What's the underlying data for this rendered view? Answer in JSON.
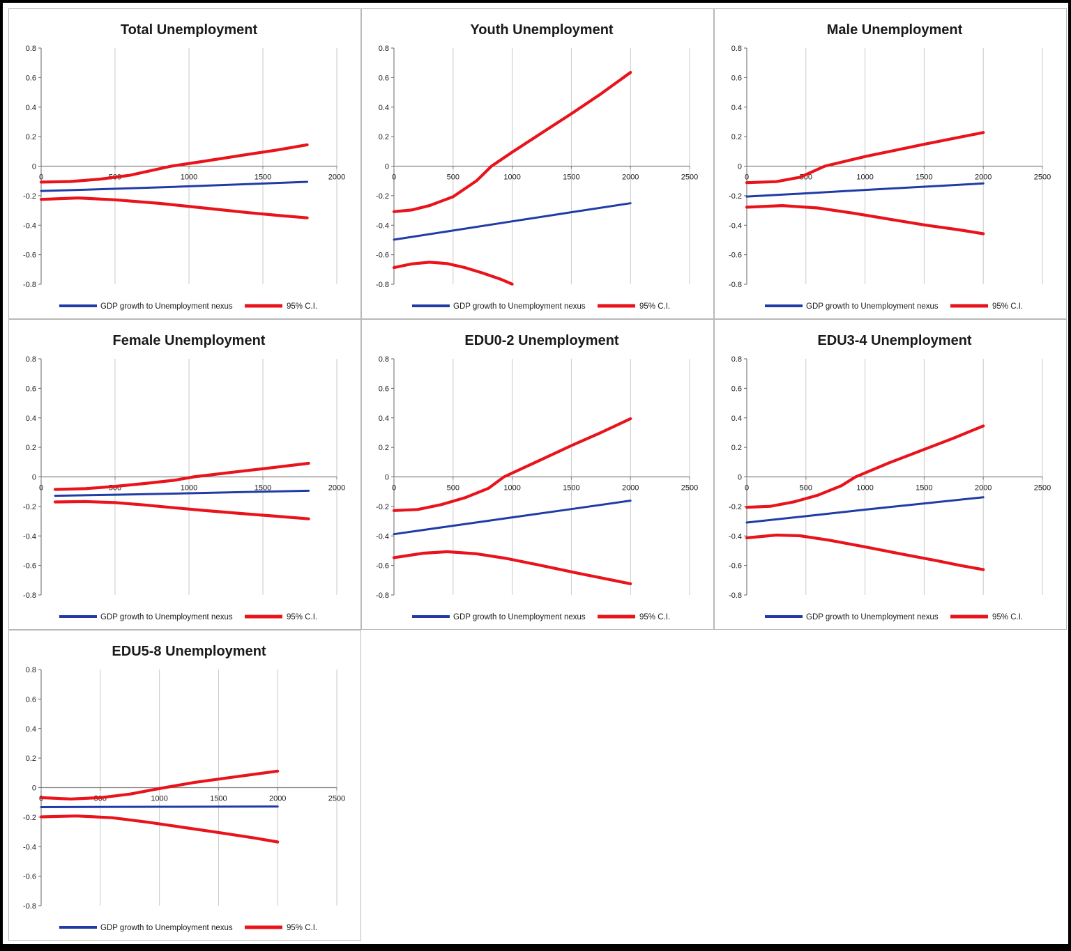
{
  "figure": {
    "background": "#ffffff",
    "frame_color": "#000000",
    "panel_border_color": "#b9b9b9"
  },
  "colors": {
    "nexus_blue": "#1f3ca6",
    "ci_red": "#e8131b",
    "gridline": "#c9c9c9",
    "axis": "#808080",
    "text": "#1a1a1a"
  },
  "legend": {
    "nexus": "GDP growth to Unemployment nexus",
    "ci": "95% C.I."
  },
  "chart_data": [
    {
      "type": "line",
      "title": "Total Unemployment",
      "xlim": [
        0,
        2000
      ],
      "xticks": [
        0,
        500,
        1000,
        1500,
        2000
      ],
      "ylim": [
        -0.8,
        0.8
      ],
      "yticks": [
        "0.8",
        "0.6",
        "0.4",
        "0.2",
        "0",
        "-0.2",
        "-0.4",
        "-0.6",
        "-0.8"
      ],
      "grid": "vertical-only",
      "legend_position": "bottom",
      "series": [
        {
          "key": "nexus",
          "name": "GDP growth to Unemployment nexus",
          "color_ref": "nexus_blue",
          "points": [
            [
              0,
              -0.168
            ],
            [
              450,
              -0.155
            ],
            [
              900,
              -0.14
            ],
            [
              1350,
              -0.123
            ],
            [
              1800,
              -0.106
            ]
          ]
        },
        {
          "key": "ci_upper",
          "name": "95% C.I.",
          "color_ref": "ci_red",
          "points": [
            [
              0,
              -0.108
            ],
            [
              200,
              -0.104
            ],
            [
              400,
              -0.088
            ],
            [
              600,
              -0.062
            ],
            [
              880,
              0
            ],
            [
              1100,
              0.033
            ],
            [
              1400,
              0.08
            ],
            [
              1600,
              0.11
            ],
            [
              1800,
              0.145
            ]
          ]
        },
        {
          "key": "ci_lower",
          "name": "95% C.I.",
          "color_ref": "ci_red",
          "points": [
            [
              0,
              -0.225
            ],
            [
              250,
              -0.215
            ],
            [
              500,
              -0.228
            ],
            [
              800,
              -0.252
            ],
            [
              1100,
              -0.283
            ],
            [
              1400,
              -0.315
            ],
            [
              1600,
              -0.333
            ],
            [
              1800,
              -0.35
            ]
          ]
        }
      ]
    },
    {
      "type": "line",
      "title": "Youth Unemployment",
      "xlim": [
        0,
        2500
      ],
      "xticks": [
        0,
        500,
        1000,
        1500,
        2000,
        2500
      ],
      "ylim": [
        -0.8,
        0.8
      ],
      "yticks": [
        "0.8",
        "0.6",
        "0.4",
        "0.2",
        "0",
        "-0.2",
        "-0.4",
        "-0.6",
        "-0.8"
      ],
      "grid": "vertical-only",
      "legend_position": "bottom",
      "series": [
        {
          "key": "nexus",
          "name": "GDP growth to Unemployment nexus",
          "color_ref": "nexus_blue",
          "points": [
            [
              0,
              -0.498
            ],
            [
              500,
              -0.436
            ],
            [
              1000,
              -0.374
            ],
            [
              1500,
              -0.312
            ],
            [
              2000,
              -0.251
            ]
          ]
        },
        {
          "key": "ci_upper",
          "name": "95% C.I.",
          "color_ref": "ci_red",
          "points": [
            [
              0,
              -0.308
            ],
            [
              150,
              -0.297
            ],
            [
              300,
              -0.267
            ],
            [
              500,
              -0.207
            ],
            [
              700,
              -0.098
            ],
            [
              825,
              0
            ],
            [
              1000,
              0.095
            ],
            [
              1250,
              0.225
            ],
            [
              1500,
              0.355
            ],
            [
              1750,
              0.49
            ],
            [
              2000,
              0.635
            ]
          ]
        },
        {
          "key": "ci_lower",
          "name": "95% C.I.",
          "color_ref": "ci_red",
          "points": [
            [
              0,
              -0.687
            ],
            [
              150,
              -0.662
            ],
            [
              300,
              -0.651
            ],
            [
              450,
              -0.66
            ],
            [
              600,
              -0.687
            ],
            [
              750,
              -0.724
            ],
            [
              900,
              -0.765
            ],
            [
              1000,
              -0.799
            ]
          ]
        }
      ]
    },
    {
      "type": "line",
      "title": "Male Unemployment",
      "xlim": [
        0,
        2500
      ],
      "xticks": [
        0,
        500,
        1000,
        1500,
        2000,
        2500
      ],
      "ylim": [
        -0.8,
        0.8
      ],
      "yticks": [
        "0.8",
        "0.6",
        "0.4",
        "0.2",
        "0",
        "-0.2",
        "-0.4",
        "-0.6",
        "-0.8"
      ],
      "grid": "vertical-only",
      "legend_position": "bottom",
      "series": [
        {
          "key": "nexus",
          "name": "GDP growth to Unemployment nexus",
          "color_ref": "nexus_blue",
          "points": [
            [
              0,
              -0.206
            ],
            [
              500,
              -0.184
            ],
            [
              1000,
              -0.161
            ],
            [
              1500,
              -0.139
            ],
            [
              2000,
              -0.117
            ]
          ]
        },
        {
          "key": "ci_upper",
          "name": "95% C.I.",
          "color_ref": "ci_red",
          "points": [
            [
              0,
              -0.112
            ],
            [
              250,
              -0.105
            ],
            [
              450,
              -0.075
            ],
            [
              660,
              0
            ],
            [
              1000,
              0.065
            ],
            [
              1500,
              0.148
            ],
            [
              2000,
              0.228
            ]
          ]
        },
        {
          "key": "ci_lower",
          "name": "95% C.I.",
          "color_ref": "ci_red",
          "points": [
            [
              0,
              -0.278
            ],
            [
              300,
              -0.267
            ],
            [
              600,
              -0.283
            ],
            [
              900,
              -0.318
            ],
            [
              1200,
              -0.358
            ],
            [
              1500,
              -0.398
            ],
            [
              1800,
              -0.432
            ],
            [
              2000,
              -0.458
            ]
          ]
        }
      ]
    },
    {
      "type": "line",
      "title": "Female Unemployment",
      "xlim": [
        0,
        2000
      ],
      "xticks": [
        0,
        500,
        1000,
        1500,
        2000
      ],
      "ylim": [
        -0.8,
        0.8
      ],
      "yticks": [
        "0.8",
        "0.6",
        "0.4",
        "0.2",
        "0",
        "-0.2",
        "-0.4",
        "-0.6",
        "-0.8"
      ],
      "grid": "vertical-only",
      "legend_position": "bottom",
      "series": [
        {
          "key": "nexus",
          "name": "GDP growth to Unemployment nexus",
          "color_ref": "nexus_blue",
          "points": [
            [
              95,
              -0.128
            ],
            [
              500,
              -0.121
            ],
            [
              1000,
              -0.111
            ],
            [
              1400,
              -0.102
            ],
            [
              1810,
              -0.094
            ]
          ]
        },
        {
          "key": "ci_upper",
          "name": "95% C.I.",
          "color_ref": "ci_red",
          "points": [
            [
              95,
              -0.085
            ],
            [
              300,
              -0.08
            ],
            [
              500,
              -0.064
            ],
            [
              700,
              -0.045
            ],
            [
              900,
              -0.023
            ],
            [
              1030,
              0
            ],
            [
              1300,
              0.032
            ],
            [
              1550,
              0.061
            ],
            [
              1810,
              0.092
            ]
          ]
        },
        {
          "key": "ci_lower",
          "name": "95% C.I.",
          "color_ref": "ci_red",
          "points": [
            [
              95,
              -0.17
            ],
            [
              300,
              -0.167
            ],
            [
              500,
              -0.174
            ],
            [
              700,
              -0.19
            ],
            [
              900,
              -0.209
            ],
            [
              1100,
              -0.227
            ],
            [
              1350,
              -0.248
            ],
            [
              1600,
              -0.267
            ],
            [
              1810,
              -0.284
            ]
          ]
        }
      ]
    },
    {
      "type": "line",
      "title": "EDU0-2 Unemployment",
      "xlim": [
        0,
        2500
      ],
      "xticks": [
        0,
        500,
        1000,
        1500,
        2000,
        2500
      ],
      "ylim": [
        -0.8,
        0.8
      ],
      "yticks": [
        "0.8",
        "0.6",
        "0.4",
        "0.2",
        "0",
        "-0.2",
        "-0.4",
        "-0.6",
        "-0.8"
      ],
      "grid": "vertical-only",
      "legend_position": "bottom",
      "series": [
        {
          "key": "nexus",
          "name": "GDP growth to Unemployment nexus",
          "color_ref": "nexus_blue",
          "points": [
            [
              0,
              -0.388
            ],
            [
              500,
              -0.331
            ],
            [
              1000,
              -0.274
            ],
            [
              1500,
              -0.218
            ],
            [
              2000,
              -0.161
            ]
          ]
        },
        {
          "key": "ci_upper",
          "name": "95% C.I.",
          "color_ref": "ci_red",
          "points": [
            [
              0,
              -0.228
            ],
            [
              200,
              -0.221
            ],
            [
              400,
              -0.188
            ],
            [
              600,
              -0.141
            ],
            [
              800,
              -0.077
            ],
            [
              930,
              0
            ],
            [
              1200,
              0.1
            ],
            [
              1500,
              0.212
            ],
            [
              1750,
              0.3
            ],
            [
              2000,
              0.394
            ]
          ]
        },
        {
          "key": "ci_lower",
          "name": "95% C.I.",
          "color_ref": "ci_red",
          "points": [
            [
              0,
              -0.547
            ],
            [
              250,
              -0.517
            ],
            [
              450,
              -0.507
            ],
            [
              700,
              -0.521
            ],
            [
              950,
              -0.552
            ],
            [
              1250,
              -0.601
            ],
            [
              1550,
              -0.652
            ],
            [
              1800,
              -0.692
            ],
            [
              2000,
              -0.724
            ]
          ]
        }
      ]
    },
    {
      "type": "line",
      "title": "EDU3-4 Unemployment",
      "xlim": [
        0,
        2500
      ],
      "xticks": [
        0,
        500,
        1000,
        1500,
        2000,
        2500
      ],
      "ylim": [
        -0.8,
        0.8
      ],
      "yticks": [
        "0.8",
        "0.6",
        "0.4",
        "0.2",
        "0",
        "-0.2",
        "-0.4",
        "-0.6",
        "-0.8"
      ],
      "grid": "vertical-only",
      "legend_position": "bottom",
      "series": [
        {
          "key": "nexus",
          "name": "GDP growth to Unemployment nexus",
          "color_ref": "nexus_blue",
          "points": [
            [
              0,
              -0.309
            ],
            [
              500,
              -0.266
            ],
            [
              1000,
              -0.222
            ],
            [
              1500,
              -0.18
            ],
            [
              2000,
              -0.138
            ]
          ]
        },
        {
          "key": "ci_upper",
          "name": "95% C.I.",
          "color_ref": "ci_red",
          "points": [
            [
              0,
              -0.206
            ],
            [
              200,
              -0.199
            ],
            [
              400,
              -0.169
            ],
            [
              600,
              -0.124
            ],
            [
              800,
              -0.06
            ],
            [
              920,
              0
            ],
            [
              1200,
              0.094
            ],
            [
              1500,
              0.186
            ],
            [
              1750,
              0.263
            ],
            [
              2000,
              0.345
            ]
          ]
        },
        {
          "key": "ci_lower",
          "name": "95% C.I.",
          "color_ref": "ci_red",
          "points": [
            [
              0,
              -0.413
            ],
            [
              250,
              -0.394
            ],
            [
              450,
              -0.399
            ],
            [
              700,
              -0.429
            ],
            [
              1000,
              -0.474
            ],
            [
              1300,
              -0.521
            ],
            [
              1600,
              -0.567
            ],
            [
              1800,
              -0.599
            ],
            [
              2000,
              -0.628
            ]
          ]
        }
      ]
    },
    {
      "type": "line",
      "title": "EDU5-8 Unemployment",
      "xlim": [
        0,
        2500
      ],
      "xticks": [
        0,
        500,
        1000,
        1500,
        2000,
        2500
      ],
      "ylim": [
        -0.8,
        0.8
      ],
      "yticks": [
        "0.8",
        "0.6",
        "0.4",
        "0.2",
        "0",
        "-0.2",
        "-0.4",
        "-0.6",
        "-0.8"
      ],
      "grid": "vertical-only",
      "legend_position": "bottom",
      "series": [
        {
          "key": "nexus",
          "name": "GDP growth to Unemployment nexus",
          "color_ref": "nexus_blue",
          "points": [
            [
              0,
              -0.132
            ],
            [
              1000,
              -0.13
            ],
            [
              2000,
              -0.128
            ]
          ]
        },
        {
          "key": "ci_upper",
          "name": "95% C.I.",
          "color_ref": "ci_red",
          "points": [
            [
              0,
              -0.068
            ],
            [
              250,
              -0.077
            ],
            [
              500,
              -0.068
            ],
            [
              750,
              -0.044
            ],
            [
              1000,
              -0.006
            ],
            [
              1300,
              0.036
            ],
            [
              1650,
              0.074
            ],
            [
              2000,
              0.112
            ]
          ]
        },
        {
          "key": "ci_lower",
          "name": "95% C.I.",
          "color_ref": "ci_red",
          "points": [
            [
              0,
              -0.198
            ],
            [
              300,
              -0.192
            ],
            [
              600,
              -0.204
            ],
            [
              900,
              -0.234
            ],
            [
              1200,
              -0.269
            ],
            [
              1500,
              -0.304
            ],
            [
              1800,
              -0.341
            ],
            [
              2000,
              -0.368
            ]
          ]
        }
      ]
    }
  ]
}
